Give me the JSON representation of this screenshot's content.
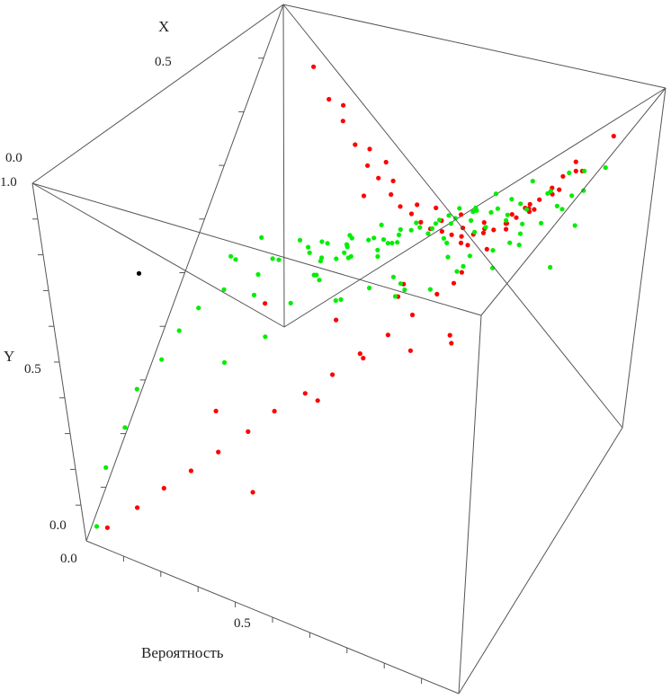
{
  "chart_data": {
    "type": "scatter3d",
    "axes": {
      "x": {
        "label": "X",
        "ticks": [
          "0.0",
          "0.5"
        ]
      },
      "y": {
        "label": "Y",
        "ticks": [
          "0.0",
          "0.5",
          "1.0"
        ]
      },
      "z": {
        "label": "Вероятность",
        "ticks": [
          "0.0",
          "0.5"
        ]
      }
    },
    "colors": {
      "red_points": "#ff0000",
      "green_points": "#00ee00",
      "box": "#555555"
    },
    "series": [
      {
        "color": "#ff0000",
        "points": [
          [
            0.02,
            0.03,
            0.05
          ],
          [
            0.05,
            0.08,
            0.12
          ],
          [
            0.08,
            0.13,
            0.18
          ],
          [
            0.11,
            0.18,
            0.24
          ],
          [
            0.14,
            0.24,
            0.3
          ],
          [
            0.18,
            0.3,
            0.36
          ],
          [
            0.22,
            0.36,
            0.41
          ],
          [
            0.26,
            0.42,
            0.47
          ],
          [
            0.3,
            0.48,
            0.52
          ],
          [
            0.34,
            0.55,
            0.57
          ],
          [
            0.38,
            0.61,
            0.62
          ],
          [
            0.42,
            0.67,
            0.66
          ],
          [
            0.46,
            0.73,
            0.7
          ],
          [
            0.5,
            0.79,
            0.74
          ],
          [
            0.54,
            0.85,
            0.78
          ],
          [
            0.57,
            0.9,
            0.81
          ],
          [
            0.6,
            0.95,
            0.84
          ],
          [
            0.58,
            0.97,
            0.86
          ],
          [
            0.98,
            0.04,
            0.1
          ],
          [
            0.97,
            0.08,
            0.15
          ],
          [
            0.97,
            0.12,
            0.19
          ],
          [
            0.96,
            0.16,
            0.23
          ],
          [
            0.95,
            0.2,
            0.27
          ],
          [
            0.95,
            0.24,
            0.3
          ],
          [
            0.94,
            0.28,
            0.34
          ],
          [
            0.93,
            0.32,
            0.37
          ],
          [
            0.93,
            0.36,
            0.4
          ],
          [
            0.92,
            0.4,
            0.43
          ],
          [
            0.91,
            0.44,
            0.46
          ],
          [
            0.91,
            0.48,
            0.49
          ],
          [
            0.9,
            0.52,
            0.52
          ],
          [
            0.89,
            0.56,
            0.55
          ],
          [
            0.89,
            0.6,
            0.58
          ],
          [
            0.88,
            0.64,
            0.61
          ],
          [
            0.87,
            0.68,
            0.64
          ],
          [
            0.87,
            0.72,
            0.67
          ],
          [
            0.86,
            0.76,
            0.7
          ],
          [
            0.86,
            0.8,
            0.73
          ],
          [
            0.85,
            0.84,
            0.76
          ],
          [
            0.85,
            0.88,
            0.79
          ],
          [
            0.84,
            0.92,
            0.82
          ],
          [
            0.84,
            0.96,
            0.85
          ],
          [
            0.99,
            0.1,
            0.18
          ],
          [
            0.98,
            0.18,
            0.26
          ],
          [
            0.97,
            0.26,
            0.33
          ],
          [
            0.96,
            0.34,
            0.4
          ],
          [
            0.95,
            0.42,
            0.47
          ],
          [
            0.94,
            0.5,
            0.53
          ],
          [
            0.93,
            0.58,
            0.59
          ],
          [
            0.92,
            0.66,
            0.65
          ],
          [
            0.91,
            0.74,
            0.71
          ],
          [
            0.9,
            0.82,
            0.77
          ],
          [
            0.89,
            0.9,
            0.83
          ],
          [
            0.99,
            0.22,
            0.3
          ],
          [
            0.98,
            0.38,
            0.44
          ],
          [
            0.97,
            0.54,
            0.57
          ],
          [
            0.96,
            0.7,
            0.7
          ],
          [
            0.95,
            0.86,
            0.82
          ],
          [
            0.99,
            0.46,
            0.5
          ],
          [
            0.99,
            0.62,
            0.63
          ],
          [
            0.98,
            0.78,
            0.75
          ],
          [
            0.98,
            0.94,
            0.88
          ],
          [
            0.6,
            0.02,
            0.45
          ],
          [
            0.45,
            0.05,
            0.4
          ],
          [
            0.75,
            0.1,
            0.62
          ],
          [
            0.3,
            0.08,
            0.2
          ],
          [
            0.66,
            0.12,
            0.55
          ],
          [
            0.82,
            0.3,
            0.58
          ],
          [
            0.7,
            0.45,
            0.5
          ],
          [
            0.5,
            0.55,
            0.72
          ],
          [
            0.4,
            0.6,
            0.3
          ],
          [
            0.78,
            0.7,
            0.6
          ],
          [
            0.2,
            0.05,
            0.35
          ],
          [
            0.72,
            0.25,
            0.48
          ],
          [
            0.65,
            0.8,
            0.68
          ],
          [
            0.88,
            0.15,
            0.3
          ],
          [
            0.55,
            0.35,
            0.4
          ]
        ]
      },
      {
        "color": "#00ee00",
        "points": [
          [
            0.02,
            0.02,
            0.02
          ],
          [
            0.06,
            0.15,
            0.04
          ],
          [
            0.1,
            0.25,
            0.08
          ],
          [
            0.14,
            0.35,
            0.1
          ],
          [
            0.18,
            0.45,
            0.15
          ],
          [
            0.22,
            0.55,
            0.18
          ],
          [
            0.28,
            0.62,
            0.2
          ],
          [
            0.33,
            0.7,
            0.24
          ],
          [
            0.38,
            0.78,
            0.3
          ],
          [
            0.44,
            0.85,
            0.32
          ],
          [
            0.5,
            0.92,
            0.36
          ],
          [
            0.3,
            0.72,
            0.42
          ],
          [
            0.42,
            0.88,
            0.5
          ],
          [
            0.25,
            0.6,
            0.38
          ],
          [
            0.36,
            0.8,
            0.46
          ],
          [
            0.55,
            0.95,
            0.44
          ],
          [
            0.2,
            0.5,
            0.3
          ],
          [
            0.46,
            0.9,
            0.55
          ],
          [
            0.52,
            0.96,
            0.6
          ],
          [
            0.32,
            0.75,
            0.52
          ],
          [
            0.4,
            0.82,
            0.62
          ],
          [
            0.48,
            0.93,
            0.7
          ],
          [
            0.58,
            0.98,
            0.72
          ],
          [
            0.35,
            0.78,
            0.65
          ],
          [
            0.45,
            0.88,
            0.78
          ],
          [
            0.55,
            0.96,
            0.82
          ],
          [
            0.38,
            0.8,
            0.72
          ],
          [
            0.5,
            0.95,
            0.88
          ],
          [
            0.6,
            0.99,
            0.9
          ],
          [
            0.42,
            0.86,
            0.85
          ],
          [
            0.95,
            0.8,
            0.1
          ],
          [
            0.92,
            0.85,
            0.15
          ],
          [
            0.9,
            0.9,
            0.2
          ],
          [
            0.88,
            0.95,
            0.25
          ],
          [
            0.93,
            0.75,
            0.22
          ],
          [
            0.91,
            0.82,
            0.28
          ],
          [
            0.89,
            0.88,
            0.33
          ],
          [
            0.87,
            0.93,
            0.38
          ],
          [
            0.94,
            0.7,
            0.3
          ],
          [
            0.92,
            0.78,
            0.36
          ],
          [
            0.9,
            0.85,
            0.42
          ],
          [
            0.88,
            0.91,
            0.48
          ],
          [
            0.86,
            0.97,
            0.54
          ],
          [
            0.93,
            0.68,
            0.4
          ],
          [
            0.91,
            0.76,
            0.46
          ],
          [
            0.89,
            0.83,
            0.52
          ],
          [
            0.87,
            0.9,
            0.58
          ],
          [
            0.85,
            0.96,
            0.64
          ],
          [
            0.92,
            0.66,
            0.5
          ],
          [
            0.9,
            0.74,
            0.56
          ],
          [
            0.88,
            0.81,
            0.62
          ],
          [
            0.86,
            0.88,
            0.68
          ],
          [
            0.84,
            0.95,
            0.74
          ],
          [
            0.91,
            0.64,
            0.6
          ],
          [
            0.89,
            0.72,
            0.66
          ],
          [
            0.87,
            0.79,
            0.72
          ],
          [
            0.85,
            0.86,
            0.78
          ],
          [
            0.83,
            0.93,
            0.84
          ],
          [
            0.9,
            0.62,
            0.7
          ],
          [
            0.88,
            0.7,
            0.76
          ],
          [
            0.86,
            0.77,
            0.82
          ],
          [
            0.84,
            0.84,
            0.88
          ],
          [
            0.82,
            0.91,
            0.94
          ],
          [
            0.75,
            0.9,
            0.7
          ],
          [
            0.7,
            0.95,
            0.6
          ],
          [
            0.65,
            0.85,
            0.5
          ],
          [
            0.6,
            0.9,
            0.4
          ],
          [
            0.72,
            0.8,
            0.45
          ],
          [
            0.68,
            0.75,
            0.35
          ],
          [
            0.78,
            0.7,
            0.25
          ],
          [
            0.62,
            0.7,
            0.2
          ],
          [
            0.55,
            0.8,
            0.15
          ],
          [
            0.66,
            0.6,
            0.3
          ],
          [
            0.74,
            0.55,
            0.2
          ],
          [
            0.8,
            0.6,
            0.4
          ],
          [
            0.58,
            0.65,
            0.55
          ],
          [
            0.7,
            0.65,
            0.65
          ],
          [
            0.64,
            0.78,
            0.75
          ],
          [
            0.76,
            0.85,
            0.85
          ],
          [
            0.68,
            0.92,
            0.92
          ],
          [
            0.5,
            0.7,
            0.6
          ],
          [
            0.56,
            0.75,
            0.7
          ],
          [
            0.62,
            0.82,
            0.8
          ],
          [
            0.48,
            0.62,
            0.45
          ],
          [
            0.72,
            0.88,
            0.55
          ],
          [
            0.8,
            0.78,
            0.5
          ],
          [
            0.78,
            0.92,
            0.3
          ],
          [
            0.82,
            0.66,
            0.35
          ],
          [
            0.6,
            0.58,
            0.1
          ],
          [
            0.7,
            0.5,
            0.12
          ],
          [
            0.84,
            0.74,
            0.2
          ],
          [
            0.66,
            0.94,
            0.8
          ],
          [
            0.74,
            0.96,
            0.92
          ],
          [
            0.58,
            0.86,
            0.66
          ],
          [
            0.54,
            0.68,
            0.35
          ],
          [
            0.44,
            0.58,
            0.25
          ],
          [
            0.62,
            0.52,
            0.45
          ],
          [
            0.76,
            0.62,
            0.58
          ],
          [
            0.52,
            0.84,
            0.52
          ],
          [
            0.64,
            0.72,
            0.9
          ],
          [
            0.46,
            0.76,
            0.4
          ],
          [
            0.68,
            0.84,
            0.68
          ],
          [
            0.8,
            0.9,
            0.62
          ],
          [
            0.72,
            0.74,
            0.78
          ],
          [
            0.86,
            0.7,
            0.86
          ]
        ]
      },
      {
        "color": "#000000",
        "points": [
          [
            0.3,
            0.72,
            0.05
          ]
        ]
      }
    ]
  }
}
